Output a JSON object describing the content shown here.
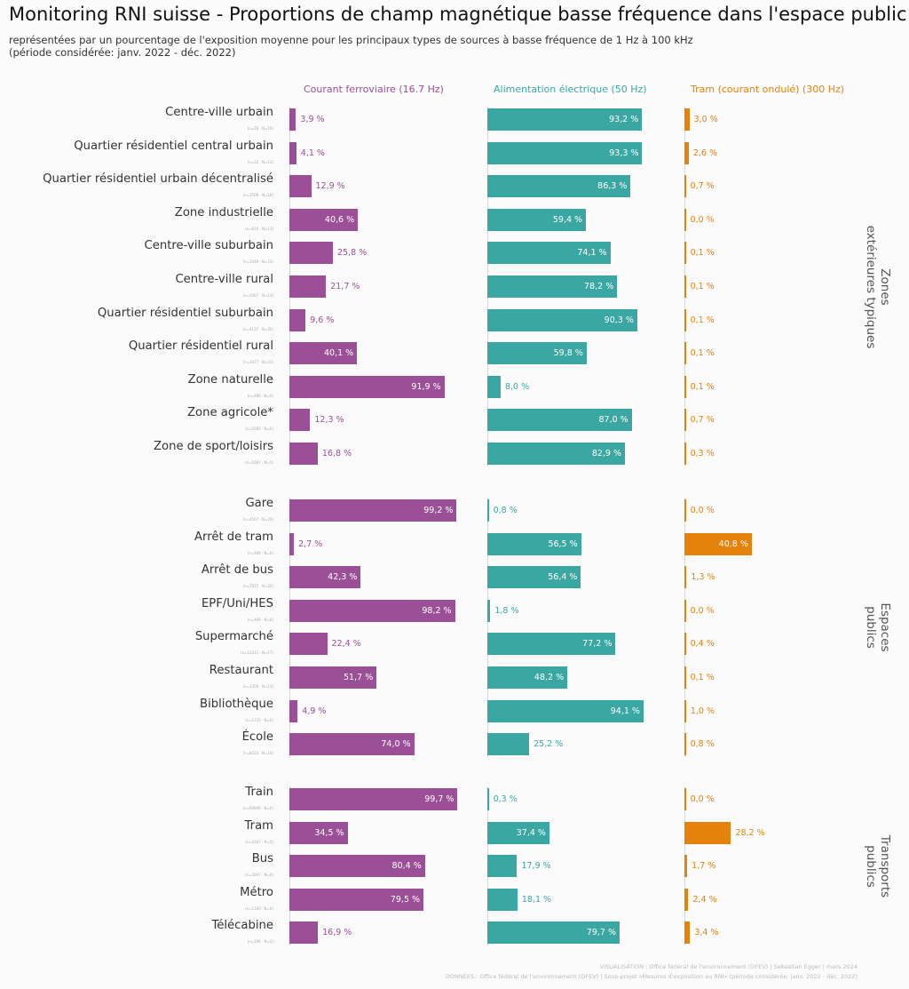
{
  "header": {
    "title": "Monitoring RNI suisse - Proportions de champ magnétique basse fréquence dans l'espace public",
    "subtitle_line1": "représentées par un pourcentage de l'exposition moyenne pour les principaux types de sources à basse fréquence de 1 Hz à 100 kHz",
    "subtitle_line2": "(période considérée: janv. 2022 - déc. 2022)"
  },
  "footer": {
    "line1": "VISUALISATION : Office fédéral de l'environnement (OFEV) | Sebastian Egger | mars 2024",
    "line2": "DONNÉES : Office fédéral de l'environnement (OFEV) | Sous-projet «Mesures d'exposition au RNI» (période considérée: janv. 2022 - déc. 2022)"
  },
  "chart_data": {
    "type": "bar",
    "orientation": "horizontal",
    "unit": "%",
    "xlim": [
      0,
      100
    ],
    "series": [
      {
        "name": "Courant ferroviaire (16.7 Hz)",
        "color": "#9b4f96",
        "values": [
          3.9,
          4.1,
          12.9,
          40.6,
          25.8,
          21.7,
          9.6,
          40.1,
          91.9,
          12.3,
          16.8,
          99.2,
          2.7,
          42.3,
          98.2,
          22.4,
          51.7,
          4.9,
          74.0,
          99.7,
          34.5,
          80.4,
          79.5,
          16.9
        ],
        "labels": [
          "3,9 %",
          "4,1 %",
          "12,9 %",
          "40,6 %",
          "25,8 %",
          "21,7 %",
          "9,6 %",
          "40,1 %",
          "91,9 %",
          "12,3 %",
          "16,8 %",
          "99,2 %",
          "2,7 %",
          "42,3 %",
          "98,2 %",
          "22,4 %",
          "51,7 %",
          "4,9 %",
          "74,0 %",
          "99,7 %",
          "34,5 %",
          "80,4 %",
          "79,5 %",
          "16,9 %"
        ]
      },
      {
        "name": "Alimentation électrique (50 Hz)",
        "color": "#3aa7a3",
        "values": [
          93.2,
          93.3,
          86.3,
          59.4,
          74.1,
          78.2,
          90.3,
          59.8,
          8.0,
          87.0,
          82.9,
          0.8,
          56.5,
          56.4,
          1.8,
          77.2,
          48.2,
          94.1,
          25.2,
          0.3,
          37.4,
          17.9,
          18.1,
          79.7
        ],
        "labels": [
          "93,2 %",
          "93,3 %",
          "86,3 %",
          "59,4 %",
          "74,1 %",
          "78,2 %",
          "90,3 %",
          "59,8 %",
          "8,0 %",
          "87,0 %",
          "82,9 %",
          "0,8 %",
          "56,5 %",
          "56,4 %",
          "1,8 %",
          "77,2 %",
          "48,2 %",
          "94,1 %",
          "25,2 %",
          "0,3 %",
          "37,4 %",
          "17,9 %",
          "18,1 %",
          "79,7 %"
        ]
      },
      {
        "name": "Tram (courant ondulé) (300 Hz)",
        "color": "#e5820b",
        "values": [
          3.0,
          2.6,
          0.7,
          0.0,
          0.1,
          0.1,
          0.1,
          0.1,
          0.1,
          0.7,
          0.3,
          0.0,
          40.8,
          1.3,
          0.0,
          0.4,
          0.1,
          1.0,
          0.8,
          0.0,
          28.2,
          1.7,
          2.4,
          3.4
        ],
        "labels": [
          "3,0 %",
          "2,6 %",
          "0,7 %",
          "0,0 %",
          "0,1 %",
          "0,1 %",
          "0,1 %",
          "0,1 %",
          "0,1 %",
          "0,7 %",
          "0,3 %",
          "0,0 %",
          "40,8 %",
          "1,3 %",
          "0,0 %",
          "0,4 %",
          "0,1 %",
          "1,0 %",
          "0,8 %",
          "0,0 %",
          "28,2 %",
          "1,7 %",
          "2,4 %",
          "3,4 %"
        ]
      }
    ],
    "groups": [
      {
        "label_line1": "Zones",
        "label_line2": "extérieures typiques",
        "rows": [
          {
            "label": "Centre-ville urbain",
            "sub": "(n=26 · N=10)"
          },
          {
            "label": "Quartier résidentiel central urbain",
            "sub": "(n=12 · N=11)"
          },
          {
            "label": "Quartier résidentiel urbain décentralisé",
            "sub": "(n=1508 · N=16)"
          },
          {
            "label": "Zone industrielle",
            "sub": "(n=610 · N=11)"
          },
          {
            "label": "Centre-ville suburbain",
            "sub": "(n=3349 · N=23)"
          },
          {
            "label": "Centre-ville rural",
            "sub": "(n=1067 · N=13)"
          },
          {
            "label": "Quartier résidentiel suburbain",
            "sub": "(n=4137 · N=26)"
          },
          {
            "label": "Quartier résidentiel rural",
            "sub": "(n=3477 · N=23)"
          },
          {
            "label": "Zone naturelle",
            "sub": "(n=490 · N=6)"
          },
          {
            "label": "Zone agricole*",
            "sub": "(n=5585 · N=6)"
          },
          {
            "label": "Zone de sport/loisirs",
            "sub": "(n=1687 · N=5)"
          }
        ]
      },
      {
        "label_line1": "Espaces",
        "label_line2": "publics",
        "rows": [
          {
            "label": "Gare",
            "sub": "(n=4567 · N=26)"
          },
          {
            "label": "Arrêt de tram",
            "sub": "(n=469 · N=6)"
          },
          {
            "label": "Arrêt de bus",
            "sub": "(n=7015 · N=20)"
          },
          {
            "label": "EPF/Uni/HES",
            "sub": "(n=466 · N=6)"
          },
          {
            "label": "Supermarché",
            "sub": "(n=12311 · N=17)"
          },
          {
            "label": "Restaurant",
            "sub": "(n=3356 · N=13)"
          },
          {
            "label": "Bibliothèque",
            "sub": "(n=1135 · N=6)"
          },
          {
            "label": "École",
            "sub": "(n=8224 · N=16)"
          }
        ]
      },
      {
        "label_line1": "Transports",
        "label_line2": "publics",
        "rows": [
          {
            "label": "Train",
            "sub": "(n=94946 · N=6)"
          },
          {
            "label": "Tram",
            "sub": "(n=4187 · N=5)"
          },
          {
            "label": "Bus",
            "sub": "(n=3047 · N=6)"
          },
          {
            "label": "Métro",
            "sub": "(n=1160 · N=6)"
          },
          {
            "label": "Télécabine",
            "sub": "(n=196 · N=2)"
          }
        ]
      }
    ]
  }
}
